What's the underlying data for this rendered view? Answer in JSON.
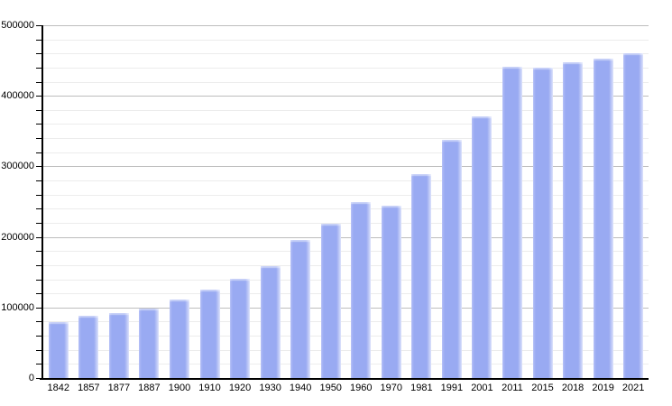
{
  "chart_data": {
    "type": "bar",
    "title": "",
    "xlabel": "",
    "ylabel": "",
    "categories": [
      "1842",
      "1857",
      "1877",
      "1887",
      "1900",
      "1910",
      "1920",
      "1930",
      "1940",
      "1950",
      "1960",
      "1970",
      "1981",
      "1991",
      "2001",
      "2011",
      "2015",
      "2018",
      "2019",
      "2021"
    ],
    "values": [
      79030,
      87803,
      91805,
      98538,
      111693,
      125057,
      141175,
      158724,
      195583,
      218375,
      249771,
      243759,
      288631,
      338250,
      370745,
      441354,
      439712,
      447182,
      453258,
      460349
    ],
    "ylim": [
      0,
      500000
    ],
    "y_major_tick_step": 100000,
    "y_minor_tick_step": 20000,
    "y_tick_labels": [
      "0",
      "100000",
      "200000",
      "300000",
      "400000",
      "500000"
    ],
    "grid": "horizontal-on",
    "legend": "none",
    "colors": {
      "bar_fill": "#99aaf2",
      "bar_fill_light": "#b2bef6",
      "bar_fade_edge": "#dbe1fb",
      "major_gridline": "#bdbdbd",
      "minor_gridline": "#ececec",
      "axis_line": "#000000",
      "tick_label": "#000000",
      "background": "#ffffff"
    }
  }
}
